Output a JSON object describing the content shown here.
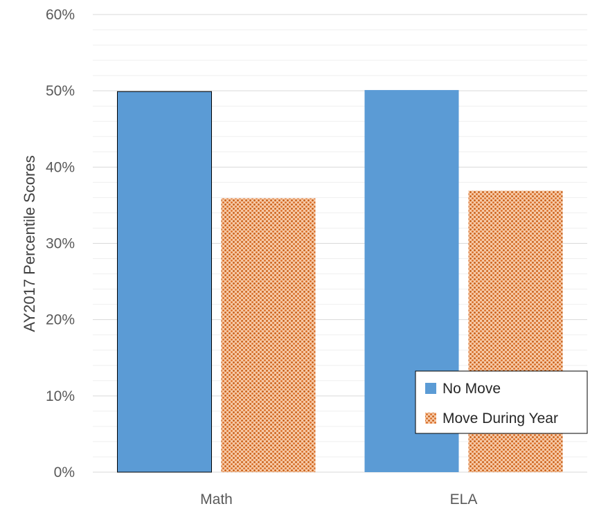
{
  "chart_data": {
    "type": "bar",
    "categories": [
      "Math",
      "ELA"
    ],
    "series": [
      {
        "name": "No Move",
        "values": [
          49.9,
          50.1
        ],
        "color": "#5b9bd5",
        "pattern": "solid"
      },
      {
        "name": "Move During Year",
        "values": [
          35.9,
          36.9
        ],
        "color": "#ed7d31",
        "pattern": "dotted"
      }
    ],
    "ylabel": "AY2017 Percentile Scores",
    "xlabel": "",
    "ylim": [
      0,
      60
    ],
    "yticks": [
      "0%",
      "10%",
      "20%",
      "30%",
      "40%",
      "50%",
      "60%"
    ],
    "y_unit": "percent",
    "grid": "horizontal major and minor",
    "legend_position": "bottom-right"
  }
}
